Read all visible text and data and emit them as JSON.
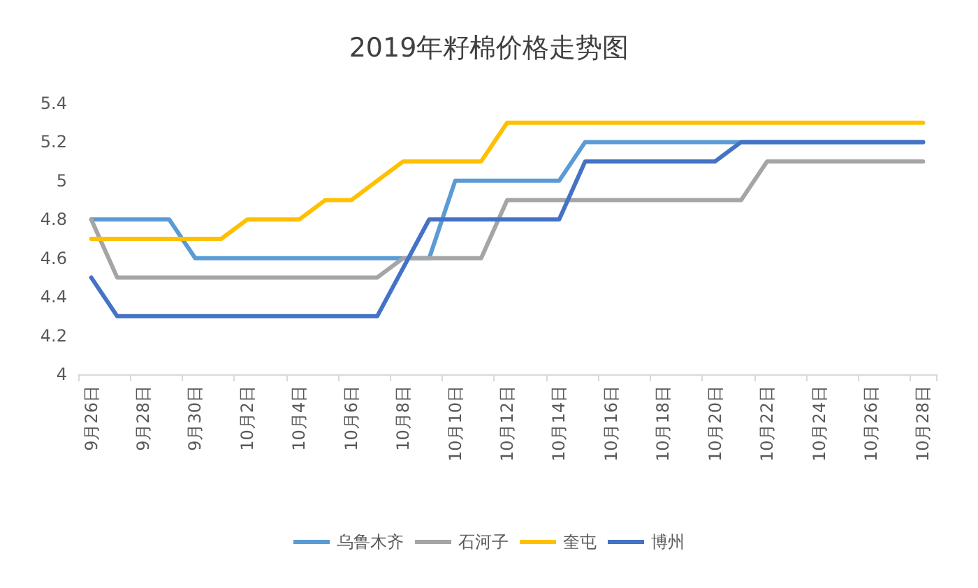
{
  "chart_data": {
    "type": "line",
    "title": "2019年籽棉价格走势图",
    "categories": [
      "9月26日",
      null,
      "9月28日",
      null,
      "9月30日",
      null,
      "10月2日",
      null,
      "10月4日",
      null,
      "10月6日",
      null,
      "10月8日",
      null,
      "10月10日",
      null,
      "10月12日",
      null,
      "10月14日",
      null,
      "10月16日",
      null,
      "10月18日",
      null,
      "10月20日",
      null,
      "10月22日",
      null,
      "10月24日",
      null,
      "10月26日",
      null,
      "10月28日"
    ],
    "series": [
      {
        "name": "乌鲁木齐",
        "color": "#5b9bd5",
        "values": [
          4.8,
          4.8,
          4.8,
          4.8,
          4.6,
          4.6,
          4.6,
          4.6,
          4.6,
          4.6,
          4.6,
          4.6,
          4.6,
          4.6,
          5.0,
          5.0,
          5.0,
          5.0,
          5.0,
          5.2,
          5.2,
          5.2,
          5.2,
          5.2,
          5.2,
          5.2,
          5.2,
          5.2,
          5.2,
          5.2,
          5.2,
          5.2,
          5.2
        ]
      },
      {
        "name": "石河子",
        "color": "#a5a5a5",
        "values": [
          4.8,
          4.5,
          4.5,
          4.5,
          4.5,
          4.5,
          4.5,
          4.5,
          4.5,
          4.5,
          4.5,
          4.5,
          4.6,
          4.6,
          4.6,
          4.6,
          4.9,
          4.9,
          4.9,
          4.9,
          4.9,
          4.9,
          4.9,
          4.9,
          4.9,
          4.9,
          5.1,
          5.1,
          5.1,
          5.1,
          5.1,
          5.1,
          5.1
        ]
      },
      {
        "name": "奎屯",
        "color": "#ffc000",
        "values": [
          4.7,
          4.7,
          4.7,
          4.7,
          4.7,
          4.7,
          4.8,
          4.8,
          4.8,
          4.9,
          4.9,
          5.0,
          5.1,
          5.1,
          5.1,
          5.1,
          5.3,
          5.3,
          5.3,
          5.3,
          5.3,
          5.3,
          5.3,
          5.3,
          5.3,
          5.3,
          5.3,
          5.3,
          5.3,
          5.3,
          5.3,
          5.3,
          5.3
        ]
      },
      {
        "name": "博州",
        "color": "#4472c4",
        "values": [
          4.5,
          4.3,
          4.3,
          4.3,
          4.3,
          4.3,
          4.3,
          4.3,
          4.3,
          4.3,
          4.3,
          4.3,
          4.55,
          4.8,
          4.8,
          4.8,
          4.8,
          4.8,
          4.8,
          5.1,
          5.1,
          5.1,
          5.1,
          5.1,
          5.1,
          5.2,
          5.2,
          5.2,
          5.2,
          5.2,
          5.2,
          5.2,
          5.2
        ]
      }
    ],
    "ylim": [
      4,
      5.4
    ],
    "yticks": [
      4,
      4.2,
      4.4,
      4.6,
      4.8,
      5,
      5.2,
      5.4
    ],
    "grid": false,
    "legend": "bottom",
    "marker": "none",
    "line_style": "solid"
  }
}
